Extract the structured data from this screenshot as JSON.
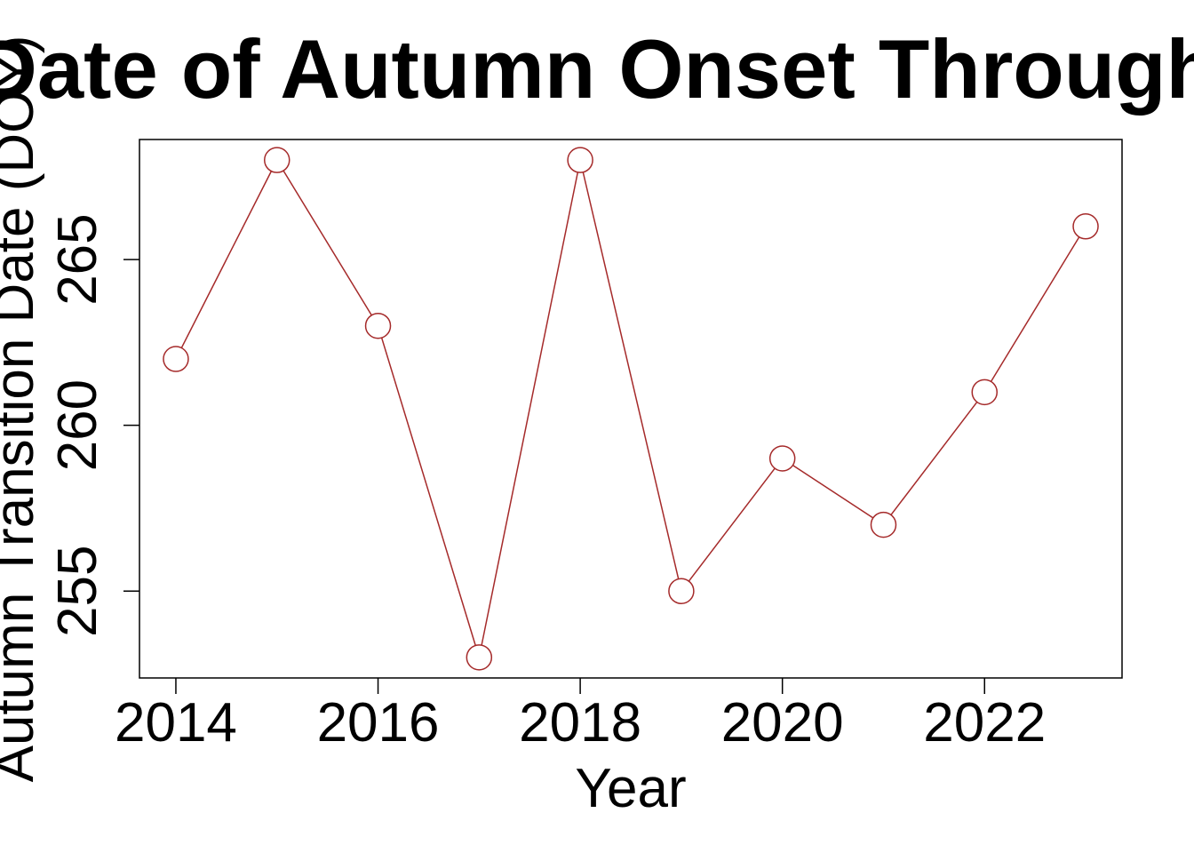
{
  "chart_data": {
    "type": "line",
    "title": "Date of Autumn Onset Through",
    "xlabel": "Year",
    "ylabel": "Autumn Transition Date (DOY)",
    "x": [
      2014,
      2015,
      2016,
      2017,
      2018,
      2019,
      2020,
      2021,
      2022,
      2023
    ],
    "series": [
      {
        "values": [
          262,
          268,
          263,
          253,
          268,
          255,
          259,
          257,
          261,
          266
        ]
      }
    ],
    "xlim": [
      2013.64,
      2023.36
    ],
    "ylim": [
      252.38,
      268.62
    ],
    "x_ticks": [
      2014,
      2016,
      2018,
      2020,
      2022
    ],
    "y_ticks": [
      255,
      260,
      265
    ],
    "color": "#a52a2a",
    "marker": "open-circle",
    "grid": false,
    "legend": "none"
  }
}
